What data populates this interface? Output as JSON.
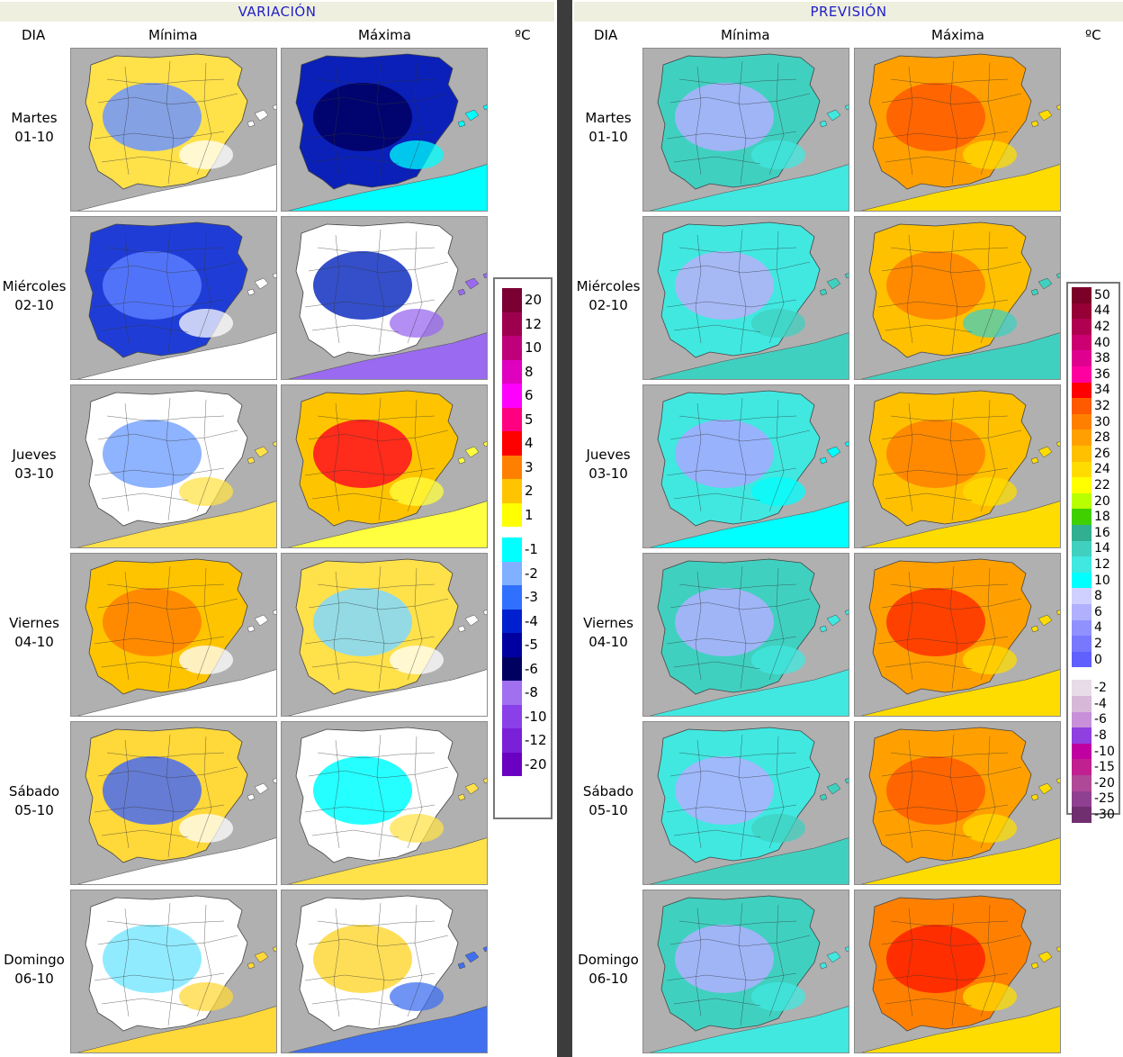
{
  "sections": [
    {
      "id": "variacion",
      "title": "VARIACIÓN",
      "columns": {
        "dia": "DIA",
        "minima": "Mínima",
        "maxima": "Máxima",
        "unit": "ºC"
      },
      "legend": [
        {
          "label": "20",
          "color": "#7a0033"
        },
        {
          "label": "12",
          "color": "#9e0050"
        },
        {
          "label": "10",
          "color": "#c0007a"
        },
        {
          "label": "8",
          "color": "#e000c0"
        },
        {
          "label": "6",
          "color": "#ff00ff"
        },
        {
          "label": "5",
          "color": "#ff0080"
        },
        {
          "label": "4",
          "color": "#ff0000"
        },
        {
          "label": "3",
          "color": "#ff8000"
        },
        {
          "label": "2",
          "color": "#ffc400"
        },
        {
          "label": "1",
          "color": "#ffff00"
        },
        {
          "label": "",
          "color": "#ffffff"
        },
        {
          "label": "-1",
          "color": "#00ffff"
        },
        {
          "label": "-2",
          "color": "#80b0ff"
        },
        {
          "label": "-3",
          "color": "#3070ff"
        },
        {
          "label": "-4",
          "color": "#0020d0"
        },
        {
          "label": "-5",
          "color": "#0000a0"
        },
        {
          "label": "-6",
          "color": "#000060"
        },
        {
          "label": "-8",
          "color": "#a070f0"
        },
        {
          "label": "-10",
          "color": "#8a40e8"
        },
        {
          "label": "-12",
          "color": "#7a20d8"
        },
        {
          "label": "-20",
          "color": "#6a00c0"
        }
      ]
    },
    {
      "id": "prevision",
      "title": "PREVISIÓN",
      "columns": {
        "dia": "DIA",
        "minima": "Mínima",
        "maxima": "Máxima",
        "unit": "ºC"
      },
      "legend": [
        {
          "label": "50",
          "color": "#7a0028"
        },
        {
          "label": "44",
          "color": "#960036"
        },
        {
          "label": "42",
          "color": "#b00050"
        },
        {
          "label": "40",
          "color": "#cc0070"
        },
        {
          "label": "38",
          "color": "#e00090"
        },
        {
          "label": "36",
          "color": "#ff00a0"
        },
        {
          "label": "34",
          "color": "#ff0000"
        },
        {
          "label": "32",
          "color": "#ff5a00"
        },
        {
          "label": "30",
          "color": "#ff8000"
        },
        {
          "label": "28",
          "color": "#ffa000"
        },
        {
          "label": "26",
          "color": "#ffc000"
        },
        {
          "label": "24",
          "color": "#ffdc00"
        },
        {
          "label": "22",
          "color": "#ffff00"
        },
        {
          "label": "20",
          "color": "#b8ff00"
        },
        {
          "label": "18",
          "color": "#40d000"
        },
        {
          "label": "16",
          "color": "#30b090"
        },
        {
          "label": "14",
          "color": "#40d0c0"
        },
        {
          "label": "12",
          "color": "#40e8e0"
        },
        {
          "label": "10",
          "color": "#00ffff"
        },
        {
          "label": "8",
          "color": "#d0d0ff"
        },
        {
          "label": "6",
          "color": "#b0b0ff"
        },
        {
          "label": "4",
          "color": "#9090ff"
        },
        {
          "label": "2",
          "color": "#7878ff"
        },
        {
          "label": "0",
          "color": "#6060ff"
        },
        {
          "label": "",
          "color": "#ffffff"
        },
        {
          "label": "-2",
          "color": "#e8dce8"
        },
        {
          "label": "-4",
          "color": "#d8b8d8"
        },
        {
          "label": "-6",
          "color": "#c890d8"
        },
        {
          "label": "-8",
          "color": "#9040e0"
        },
        {
          "label": "-10",
          "color": "#c000a0"
        },
        {
          "label": "-15",
          "color": "#c02090"
        },
        {
          "label": "-20",
          "color": "#b04898"
        },
        {
          "label": "-25",
          "color": "#904090"
        },
        {
          "label": "-30",
          "color": "#703070"
        }
      ]
    }
  ],
  "days": [
    {
      "name": "Martes",
      "date": "01-10"
    },
    {
      "name": "Miércoles",
      "date": "02-10"
    },
    {
      "name": "Jueves",
      "date": "03-10"
    },
    {
      "name": "Viernes",
      "date": "04-10"
    },
    {
      "name": "Sábado",
      "date": "05-10"
    },
    {
      "name": "Domingo",
      "date": "06-10"
    }
  ],
  "map_fills": {
    "variacion": {
      "minima": [
        [
          "#ffe14a",
          "#6f95ff",
          "#ffffff"
        ],
        [
          "#1f3dd6",
          "#5a7cff",
          "#ffffff"
        ],
        [
          "#ffffff",
          "#7aa6ff",
          "#ffe14a"
        ],
        [
          "#ffc400",
          "#ff8000",
          "#ffffff"
        ],
        [
          "#ffd83a",
          "#4a6cf0",
          "#ffffff"
        ],
        [
          "#ffffff",
          "#7ee8ff",
          "#ffd83a"
        ]
      ],
      "maxima": [
        [
          "#0a20b8",
          "#000060",
          "#00ffff"
        ],
        [
          "#ffffff",
          "#1030c0",
          "#9a6af0"
        ],
        [
          "#ffc400",
          "#ff1020",
          "#ffff40"
        ],
        [
          "#ffe14a",
          "#80d8ff",
          "#ffffff"
        ],
        [
          "#ffffff",
          "#00ffff",
          "#ffe14a"
        ],
        [
          "#ffffff",
          "#ffd83a",
          "#4070f0"
        ]
      ]
    },
    "prevision": {
      "minima": [
        [
          "#40d0c0",
          "#b0b0ff",
          "#40e8e0"
        ],
        [
          "#40e8e0",
          "#b8b0f8",
          "#40d0c0"
        ],
        [
          "#40e8e0",
          "#a8a8ff",
          "#00ffff"
        ],
        [
          "#40d0c0",
          "#b0b0ff",
          "#40e8e0"
        ],
        [
          "#40e8e0",
          "#b0b0ff",
          "#40d0c0"
        ],
        [
          "#40d0c0",
          "#b0b0ff",
          "#40e8e0"
        ]
      ],
      "maxima": [
        [
          "#ffa000",
          "#ff5a00",
          "#ffdc00"
        ],
        [
          "#ffc000",
          "#ff8000",
          "#40d0c0"
        ],
        [
          "#ffc000",
          "#ff8000",
          "#ffdc00"
        ],
        [
          "#ffa000",
          "#ff3000",
          "#ffdc00"
        ],
        [
          "#ffa000",
          "#ff5a00",
          "#ffdc00"
        ],
        [
          "#ff8000",
          "#ff2000",
          "#ffdc00"
        ]
      ]
    }
  }
}
